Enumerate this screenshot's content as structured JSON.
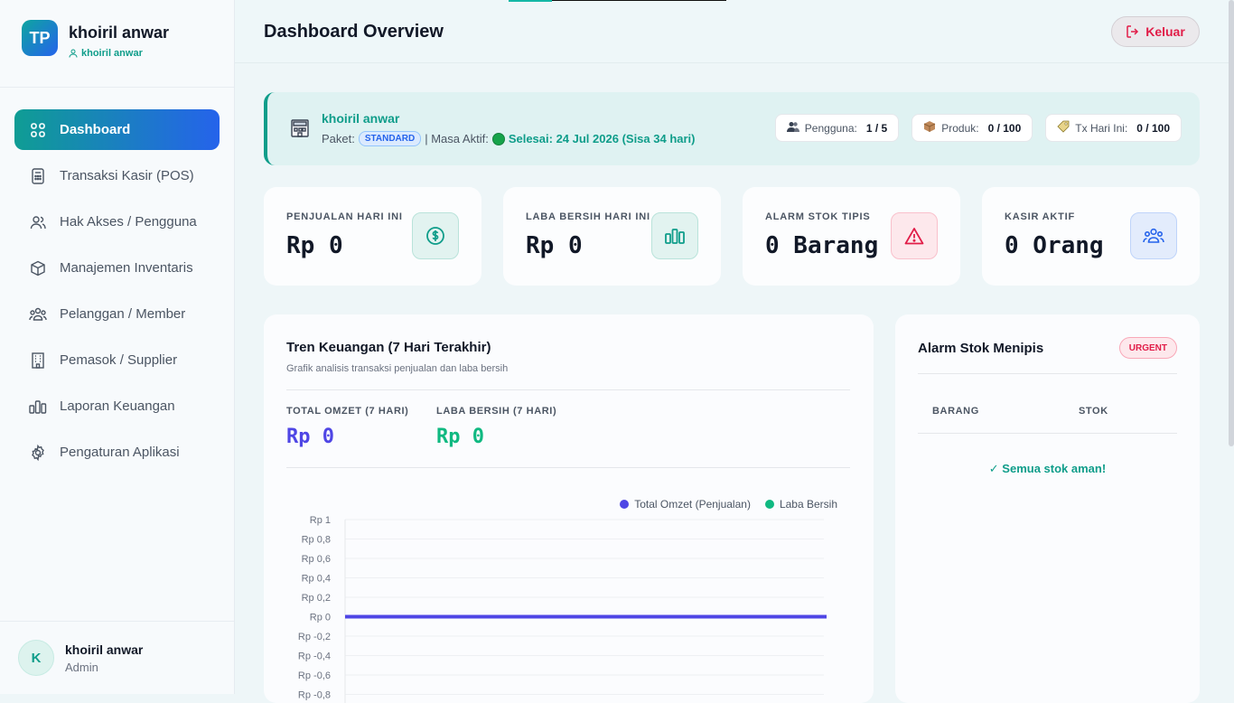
{
  "brand": {
    "logo": "TP",
    "name": "khoiril anwar",
    "username": "khoiril anwar"
  },
  "nav": [
    {
      "label": "Dashboard",
      "icon": "grid-icon",
      "active": true
    },
    {
      "label": "Transaksi Kasir (POS)",
      "icon": "calculator-icon"
    },
    {
      "label": "Hak Akses / Pengguna",
      "icon": "users-icon"
    },
    {
      "label": "Manajemen Inventaris",
      "icon": "box-icon"
    },
    {
      "label": "Pelanggan / Member",
      "icon": "group-icon"
    },
    {
      "label": "Pemasok / Supplier",
      "icon": "building-icon"
    },
    {
      "label": "Laporan Keuangan",
      "icon": "bar-chart-icon"
    },
    {
      "label": "Pengaturan Aplikasi",
      "icon": "gear-icon"
    }
  ],
  "footer_user": {
    "initial": "K",
    "name": "khoiril anwar",
    "role": "Admin"
  },
  "header": {
    "title": "Dashboard Overview",
    "logout": "Keluar"
  },
  "banner": {
    "store_name": "khoiril anwar",
    "package_label": "Paket:",
    "package": "STANDARD",
    "active_label": "| Masa Aktif:",
    "active_until": "Selesai: 24 Jul 2026 (Sisa 34 hari)",
    "chips": [
      {
        "label": "Pengguna:",
        "value": "1 / 5",
        "icon": "users-emoji"
      },
      {
        "label": "Produk:",
        "value": "0 / 100",
        "icon": "box-emoji"
      },
      {
        "label": "Tx Hari Ini:",
        "value": "0 / 100",
        "icon": "tag-emoji"
      }
    ]
  },
  "stats": [
    {
      "label": "PENJUALAN HARI INI",
      "value": "Rp 0",
      "icon": "dollar-icon",
      "color": "#0f9d8a"
    },
    {
      "label": "LABA BERSIH HARI INI",
      "value": "Rp 0",
      "icon": "bar-chart-icon",
      "color": "#0f9d8a"
    },
    {
      "label": "ALARM STOK TIPIS",
      "value": "0 Barang",
      "icon": "warning-icon",
      "color": "#e11d48"
    },
    {
      "label": "KASIR AKTIF",
      "value": "0 Orang",
      "icon": "group-icon",
      "color": "#2563eb"
    }
  ],
  "finance": {
    "title": "Tren Keuangan (7 Hari Terakhir)",
    "subtitle": "Grafik analisis transaksi penjualan dan laba bersih",
    "total_omzet_label": "TOTAL OMZET (7 HARI)",
    "total_omzet_value": "Rp 0",
    "laba_label": "LABA BERSIH (7 HARI)",
    "laba_value": "Rp 0"
  },
  "chart_data": {
    "type": "line",
    "y_ticks": [
      "Rp 1",
      "Rp 0,8",
      "Rp 0,6",
      "Rp 0,4",
      "Rp 0,2",
      "Rp 0",
      "Rp -0,2",
      "Rp -0,4",
      "Rp -0,6",
      "Rp -0,8"
    ],
    "ylim": [
      -1,
      1
    ],
    "series": [
      {
        "name": "Total Omzet (Penjualan)",
        "color": "#4f46e5",
        "values": [
          0,
          0,
          0,
          0,
          0,
          0,
          0
        ]
      },
      {
        "name": "Laba Bersih",
        "color": "#10b981",
        "values": [
          0,
          0,
          0,
          0,
          0,
          0,
          0
        ]
      }
    ]
  },
  "alarm": {
    "title": "Alarm Stok Menipis",
    "badge": "URGENT",
    "col_item": "BARANG",
    "col_stock": "STOK",
    "empty": "✓ Semua stok aman!"
  }
}
